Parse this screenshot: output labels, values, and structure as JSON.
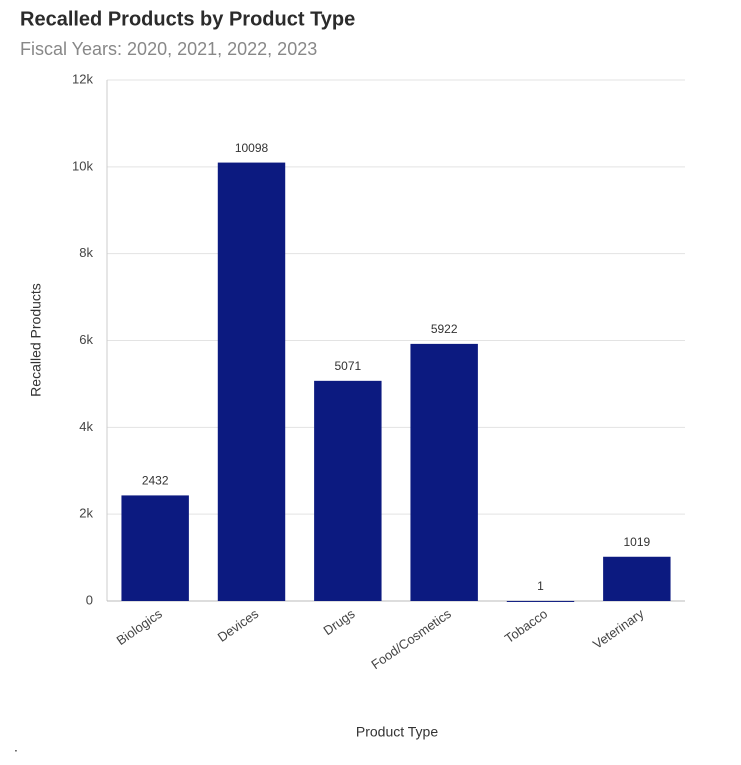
{
  "chart_data": {
    "type": "bar",
    "title": "Recalled Products by Product Type",
    "subtitle": "Fiscal Years: 2020, 2021, 2022, 2023",
    "y_label": "Recalled Products",
    "x_label": "Product Type",
    "categories": [
      "Biologics",
      "Devices",
      "Drugs",
      "Food/Cosmetics",
      "Tobacco",
      "Veterinary"
    ],
    "values": [
      2432,
      10098,
      5071,
      5922,
      1,
      1019
    ],
    "color": "#0c1a80",
    "ylim": [
      0,
      12000
    ],
    "yticks": [
      0,
      {
        "value": 2000,
        "label": "2k"
      },
      {
        "value": 4000,
        "label": "4k"
      },
      {
        "value": 6000,
        "label": "6k"
      },
      {
        "value": 8000,
        "label": "8k"
      },
      {
        "value": 10000,
        "label": "10k"
      },
      {
        "value": 12000,
        "label": "12k"
      }
    ],
    "grid": true,
    "footnote": "."
  }
}
